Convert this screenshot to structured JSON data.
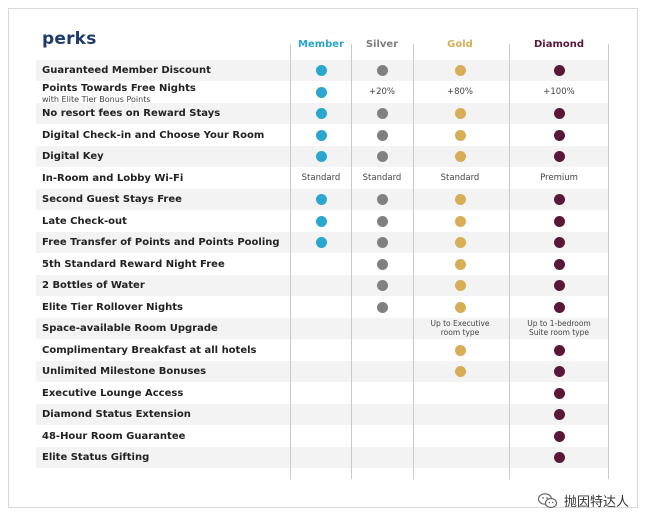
{
  "title": "perks",
  "columns": [
    {
      "key": "member",
      "label": "Member",
      "color": "#2aa6cf"
    },
    {
      "key": "silver",
      "label": "Silver",
      "color": "#7d7d7d"
    },
    {
      "key": "gold",
      "label": "Gold",
      "color": "#d8ad57"
    },
    {
      "key": "diamond",
      "label": "Diamond",
      "color": "#5a1738"
    }
  ],
  "dot_colors": {
    "member": "#2aa6cf",
    "silver": "#808080",
    "gold": "#d8ad57",
    "diamond": "#5a1738"
  },
  "rows": [
    {
      "label": "Guaranteed Member Discount",
      "member": "dot",
      "silver": "dot",
      "gold": "dot",
      "diamond": "dot"
    },
    {
      "label": "Points Towards Free Nights",
      "sub": "with Elite Tier Bonus Points",
      "member": "dot",
      "silver": "+20%",
      "gold": "+80%",
      "diamond": "+100%"
    },
    {
      "label": "No resort fees on Reward Stays",
      "member": "dot",
      "silver": "dot",
      "gold": "dot",
      "diamond": "dot"
    },
    {
      "label": "Digital Check-in and Choose Your Room",
      "member": "dot",
      "silver": "dot",
      "gold": "dot",
      "diamond": "dot"
    },
    {
      "label": "Digital Key",
      "member": "dot",
      "silver": "dot",
      "gold": "dot",
      "diamond": "dot"
    },
    {
      "label": "In-Room and Lobby Wi-Fi",
      "member": "Standard",
      "silver": "Standard",
      "gold": "Standard",
      "diamond": "Premium"
    },
    {
      "label": "Second Guest Stays Free",
      "member": "dot",
      "silver": "dot",
      "gold": "dot",
      "diamond": "dot"
    },
    {
      "label": "Late Check-out",
      "member": "dot",
      "silver": "dot",
      "gold": "dot",
      "diamond": "dot"
    },
    {
      "label": "Free Transfer of Points and Points Pooling",
      "member": "dot",
      "silver": "dot",
      "gold": "dot",
      "diamond": "dot"
    },
    {
      "label": "5th Standard Reward Night Free",
      "member": "",
      "silver": "dot",
      "gold": "dot",
      "diamond": "dot"
    },
    {
      "label": "2 Bottles of Water",
      "member": "",
      "silver": "dot",
      "gold": "dot",
      "diamond": "dot"
    },
    {
      "label": "Elite Tier Rollover Nights",
      "member": "",
      "silver": "dot",
      "gold": "dot",
      "diamond": "dot"
    },
    {
      "label": "Space-available Room Upgrade",
      "member": "",
      "silver": "",
      "gold": "Up to Executive\nroom type",
      "diamond": "Up to 1-bedroom\nSuite room type"
    },
    {
      "label": "Complimentary Breakfast at all hotels",
      "member": "",
      "silver": "",
      "gold": "dot",
      "diamond": "dot"
    },
    {
      "label": "Unlimited Milestone Bonuses",
      "member": "",
      "silver": "",
      "gold": "dot",
      "diamond": "dot"
    },
    {
      "label": "Executive Lounge Access",
      "member": "",
      "silver": "",
      "gold": "",
      "diamond": "dot"
    },
    {
      "label": "Diamond Status Extension",
      "member": "",
      "silver": "",
      "gold": "",
      "diamond": "dot"
    },
    {
      "label": "48-Hour Room Guarantee",
      "member": "",
      "silver": "",
      "gold": "",
      "diamond": "dot"
    },
    {
      "label": "Elite Status Gifting",
      "member": "",
      "silver": "",
      "gold": "",
      "diamond": "dot"
    }
  ],
  "watermark": {
    "text": "抛因特达人",
    "icon": "wechat-icon"
  }
}
